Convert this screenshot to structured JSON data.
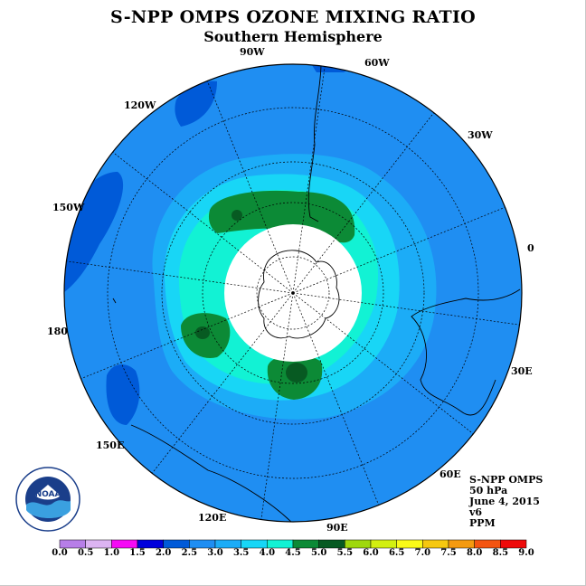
{
  "title": "S-NPP OMPS OZONE MIXING RATIO",
  "subtitle": "Southern Hemisphere",
  "longitude_labels": [
    "90W",
    "60W",
    "30W",
    "0",
    "30E",
    "60E",
    "90E",
    "120E",
    "150E",
    "180",
    "150W",
    "120W"
  ],
  "info": {
    "instrument": "S-NPP OMPS",
    "level": "50 hPa",
    "date": "June 4, 2015",
    "version": "v6",
    "units": "PPM"
  },
  "colorbar": {
    "ticks": [
      "0.0",
      "0.5",
      "1.0",
      "1.5",
      "2.0",
      "2.5",
      "3.0",
      "3.5",
      "4.0",
      "4.5",
      "5.0",
      "5.5",
      "6.0",
      "6.5",
      "7.0",
      "7.5",
      "8.0",
      "8.5",
      "9.0"
    ],
    "colors": [
      "#b77ee8",
      "#dcb4f2",
      "#f50af5",
      "#0000dc",
      "#005ad8",
      "#1f8ef2",
      "#1cacf7",
      "#18d6f6",
      "#12f2d4",
      "#0c8a36",
      "#075a22",
      "#9fd80c",
      "#d2ef10",
      "#fafa18",
      "#f6c810",
      "#f49a10",
      "#f45410",
      "#ee0a0a",
      "#78523a"
    ]
  },
  "logo_text": "NOAA"
}
